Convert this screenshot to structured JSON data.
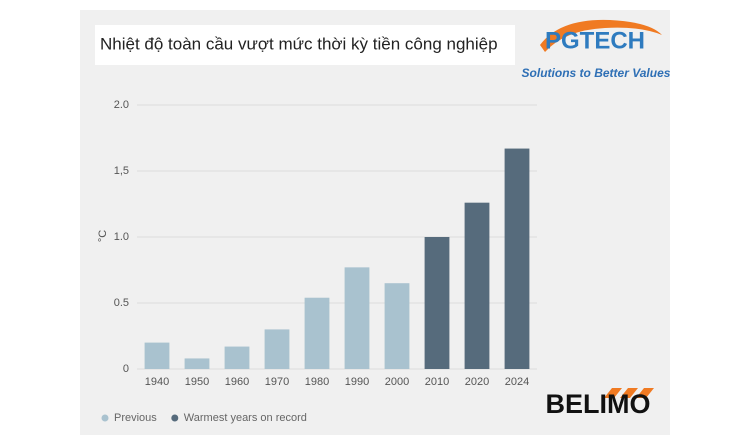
{
  "chart_data": {
    "type": "bar",
    "title": "Nhiệt độ toàn cầu vượt mức thời kỳ tiền công nghiệp",
    "y_label": "°C",
    "categories": [
      "1940",
      "1950",
      "1960",
      "1970",
      "1980",
      "1990",
      "2000",
      "2010",
      "2020",
      "2024"
    ],
    "series": [
      {
        "name": "Previous",
        "color": "#a9c2cf",
        "values": [
          0.2,
          0.08,
          0.17,
          0.3,
          0.54,
          0.77,
          0.65,
          null,
          null,
          null
        ]
      },
      {
        "name": "Warmest years on record",
        "color": "#566b7c",
        "values": [
          null,
          null,
          null,
          null,
          null,
          null,
          null,
          1.0,
          1.26,
          1.67
        ]
      }
    ],
    "ylim": [
      0,
      2
    ],
    "yticks": [
      0,
      0.5,
      {
        "value": 1,
        "label": "1.0"
      },
      {
        "value": 1.5,
        "label": "1,5"
      },
      {
        "value": 2,
        "label": "2.0"
      }
    ],
    "grid": true
  },
  "logos": {
    "pgtech": "PGTECH",
    "tagline": "Solutions to Better Values",
    "belimo": "BELIMO"
  }
}
